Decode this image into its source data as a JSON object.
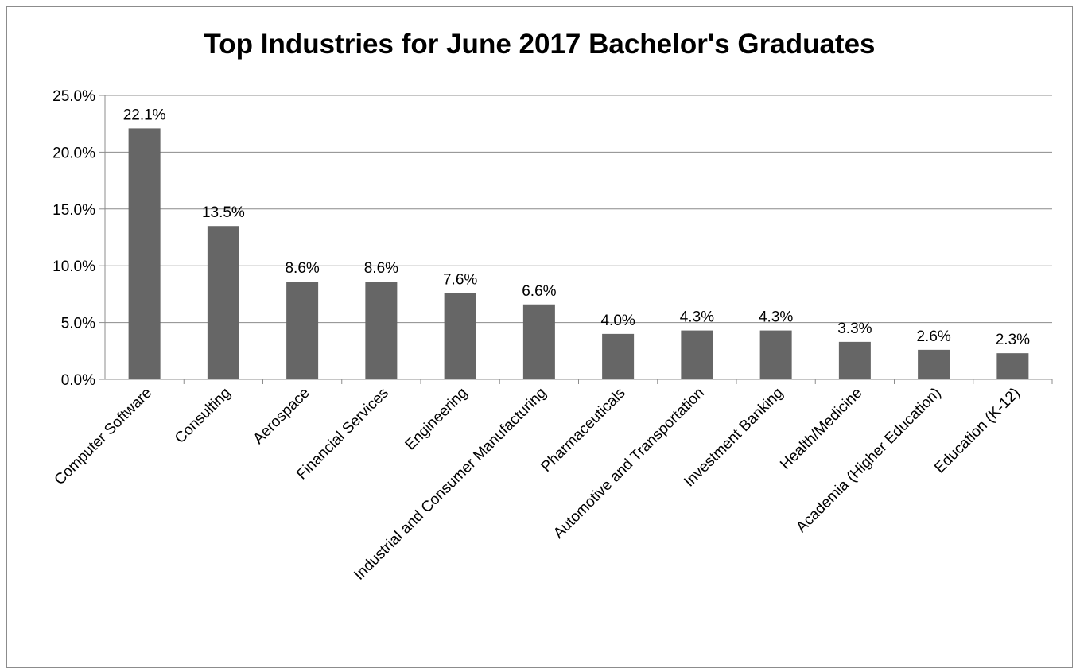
{
  "chart_data": {
    "type": "bar",
    "title": "Top Industries for June 2017 Bachelor's Graduates",
    "categories": [
      "Computer Software",
      "Consulting",
      "Aerospace",
      "Financial Services",
      "Engineering",
      "Industrial and Consumer Manufacturing",
      "Pharmaceuticals",
      "Automotive and Transportation",
      "Investment Banking",
      "Health/Medicine",
      "Academia (Higher Education)",
      "Education (K-12)"
    ],
    "values": [
      22.1,
      13.5,
      8.6,
      8.6,
      7.6,
      6.6,
      4.0,
      4.3,
      4.3,
      3.3,
      2.6,
      2.3
    ],
    "data_labels": [
      "22.1%",
      "13.5%",
      "8.6%",
      "8.6%",
      "7.6%",
      "6.6%",
      "4.0%",
      "4.3%",
      "4.3%",
      "3.3%",
      "2.6%",
      "2.3%"
    ],
    "y_ticks": [
      "0.0%",
      "5.0%",
      "10.0%",
      "15.0%",
      "20.0%",
      "25.0%"
    ],
    "ylim": [
      0,
      25
    ],
    "xlabel": "",
    "ylabel": "",
    "grid": true,
    "legend": "none",
    "bar_color": "#666666",
    "grid_color": "#8c8c8c"
  }
}
